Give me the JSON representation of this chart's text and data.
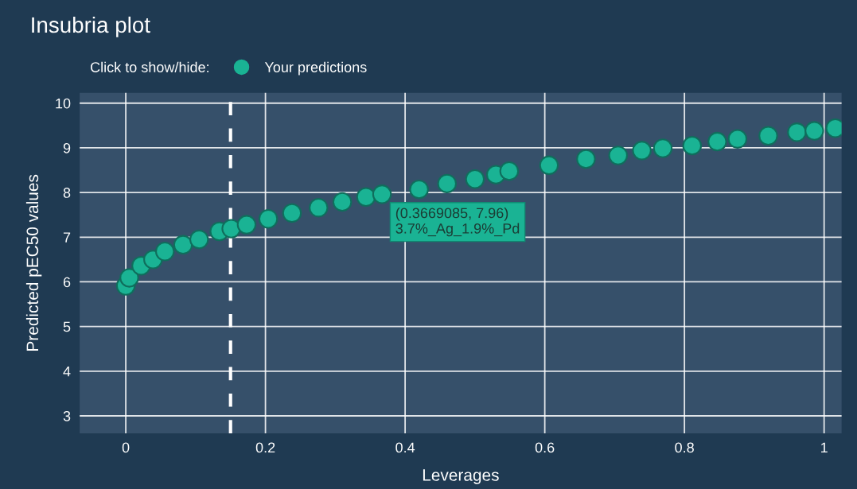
{
  "chart_data": {
    "type": "scatter",
    "title": "Insubria plot",
    "xlabel": "Leverages",
    "ylabel": "Predicted pEC50 values",
    "legend_title": "Click to show/hide:",
    "legend": "top left",
    "marker": "circle",
    "grid": true,
    "xlim": [
      -0.066,
      1.025
    ],
    "ylim": [
      2.61,
      10.23
    ],
    "xticks": [
      0,
      0.2,
      0.4,
      0.6,
      0.8,
      1
    ],
    "yticks": [
      3,
      4,
      5,
      6,
      7,
      8,
      9,
      10
    ],
    "series": [
      {
        "name": "Your predictions",
        "color": "#1ab394",
        "x": [
          0,
          0.005,
          0.022,
          0.039,
          0.056,
          0.082,
          0.105,
          0.134,
          0.151,
          0.173,
          0.204,
          0.238,
          0.276,
          0.31,
          0.344,
          0.3669085,
          0.42,
          0.46,
          0.5,
          0.53,
          0.549,
          0.606,
          0.659,
          0.705,
          0.739,
          0.769,
          0.811,
          0.847,
          0.876,
          0.92,
          0.961,
          0.986,
          1.016
        ],
        "values": [
          5.91,
          6.09,
          6.36,
          6.5,
          6.68,
          6.83,
          6.95,
          7.13,
          7.19,
          7.28,
          7.41,
          7.54,
          7.66,
          7.79,
          7.9,
          7.96,
          8.07,
          8.2,
          8.3,
          8.4,
          8.48,
          8.61,
          8.75,
          8.83,
          8.94,
          8.99,
          9.05,
          9.14,
          9.2,
          9.27,
          9.35,
          9.38,
          9.44
        ]
      }
    ],
    "ref_lines": [
      {
        "axis": "x",
        "value": 0.15,
        "color": "#ffffff",
        "line_style": "dashed"
      }
    ],
    "annotations": [
      {
        "text": "(0.3669085, 7.96)\n3.7%_Ag_1.9%_Pd",
        "x": 0.3669085,
        "y": 7.96
      }
    ]
  }
}
